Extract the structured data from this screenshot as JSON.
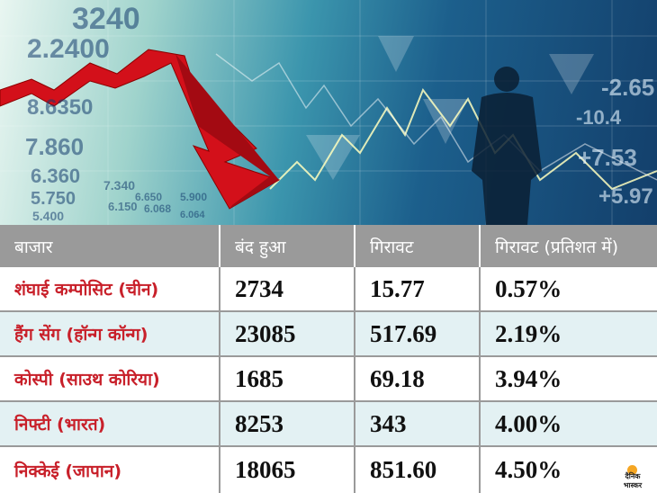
{
  "banner": {
    "tickers": [
      "3240",
      "2.2400",
      "8.6350",
      "7.860",
      "6.360",
      "5.750",
      "5.400",
      "-2.65",
      "-10.4",
      "+7.53",
      "+5.97",
      "7.340",
      "6.068",
      "6.150",
      "5.900",
      "6.650",
      "6.064"
    ]
  },
  "table": {
    "headers": [
      "बाजार",
      "बंद हुआ",
      "गिरावट",
      "गिरावट (प्रतिशत में)"
    ],
    "rows": [
      {
        "market": "शंघाई कम्पोसिट (चीन)",
        "close": "2734",
        "fall": "15.77",
        "percent": "0.57%"
      },
      {
        "market": "हैंग सेंग (हॉन्ग कॉन्ग)",
        "close": "23085",
        "fall": "517.69",
        "percent": "2.19%"
      },
      {
        "market": "कोस्पी (साउथ कोरिया)",
        "close": "1685",
        "fall": "69.18",
        "percent": "3.94%"
      },
      {
        "market": "निफ्टी (भारत)",
        "close": "8253",
        "fall": "343",
        "percent": "4.00%"
      },
      {
        "market": "निक्केई (जापान)",
        "close": "18065",
        "fall": "851.60",
        "percent": "4.50%"
      }
    ]
  },
  "logo": {
    "line1": "दैनिक",
    "line2": "भास्कर"
  }
}
